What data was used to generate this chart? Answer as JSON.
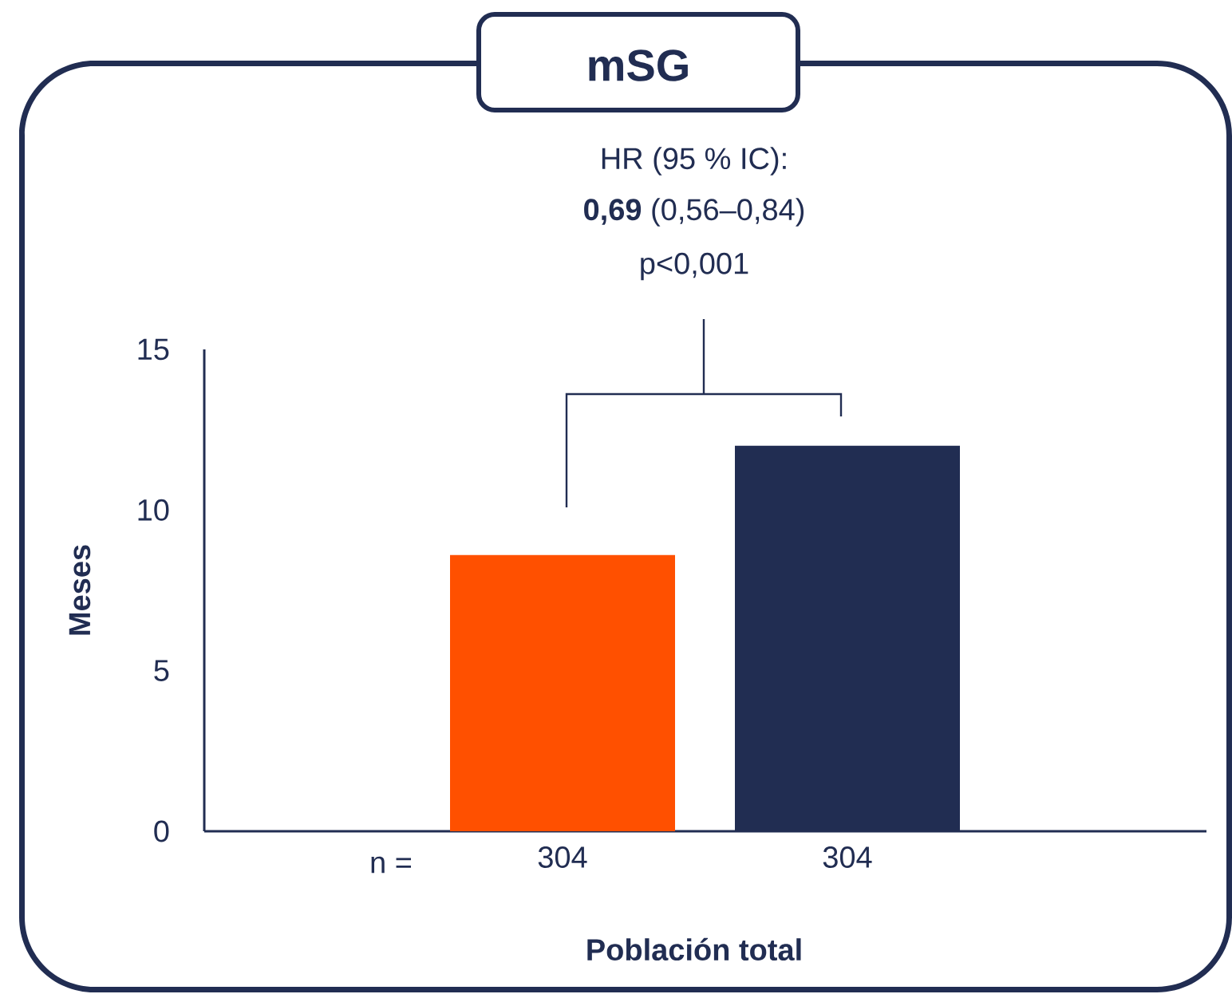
{
  "chart_data": {
    "type": "bar",
    "title": "mSG",
    "categories": [
      "304",
      "304"
    ],
    "values": [
      8.6,
      12.0
    ],
    "colors": [
      "#ff5000",
      "#212d52"
    ],
    "ylim": [
      0,
      15
    ],
    "yticks": [
      0,
      5,
      10,
      15
    ],
    "ylabel": "Meses",
    "xlabel": "Población total",
    "annotations": [
      "HR (95 % IC):",
      "**0,69** (0,56–0,84)",
      "p<0,001",
      "n ="
    ],
    "grid": false
  }
}
